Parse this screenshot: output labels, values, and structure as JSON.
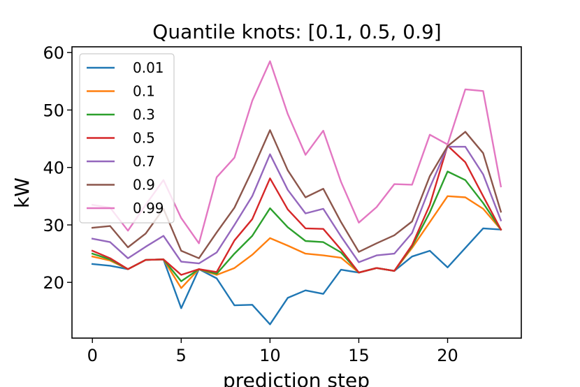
{
  "chart_data": {
    "type": "line",
    "title": "Quantile knots: [0.1, 0.5, 0.9]",
    "xlabel": "prediction step",
    "ylabel": "kW",
    "xlim": [
      -1.15,
      24.15
    ],
    "ylim": [
      10.3,
      61.0
    ],
    "xticks": [
      0,
      5,
      10,
      15,
      20
    ],
    "yticks": [
      20,
      30,
      40,
      50,
      60
    ],
    "grid": false,
    "legend_position": "top-left",
    "x": [
      0,
      1,
      2,
      3,
      4,
      5,
      6,
      7,
      8,
      9,
      10,
      11,
      12,
      13,
      14,
      15,
      16,
      17,
      18,
      19,
      20,
      21,
      22,
      23
    ],
    "series": [
      {
        "name": "0.01",
        "color": "#1f77b4",
        "values": [
          23.2,
          22.9,
          22.3,
          23.9,
          24.0,
          15.5,
          22.3,
          20.7,
          16.0,
          16.1,
          12.7,
          17.3,
          18.6,
          18.0,
          22.2,
          21.7,
          22.5,
          22.0,
          24.5,
          25.5,
          22.6,
          26.0,
          29.4,
          29.2
        ]
      },
      {
        "name": "0.1",
        "color": "#ff7f0e",
        "values": [
          24.5,
          23.8,
          22.3,
          23.9,
          24.0,
          19.0,
          22.3,
          21.3,
          22.5,
          24.8,
          27.7,
          26.4,
          25.0,
          24.7,
          24.3,
          21.7,
          22.5,
          22.0,
          26.0,
          30.5,
          35.0,
          34.8,
          32.8,
          29.2
        ]
      },
      {
        "name": "0.3",
        "color": "#2ca02c",
        "values": [
          25.0,
          24.0,
          22.3,
          23.9,
          24.0,
          20.2,
          22.3,
          21.5,
          25.0,
          28.1,
          32.9,
          29.6,
          27.2,
          27.0,
          25.2,
          21.7,
          22.5,
          22.0,
          26.3,
          32.2,
          39.3,
          37.8,
          33.8,
          29.2
        ]
      },
      {
        "name": "0.5",
        "color": "#d62728",
        "values": [
          25.5,
          24.2,
          22.3,
          23.9,
          24.0,
          21.3,
          22.3,
          21.8,
          27.3,
          31.0,
          38.1,
          32.7,
          29.4,
          29.3,
          25.7,
          21.7,
          22.5,
          22.0,
          26.5,
          33.5,
          43.8,
          40.9,
          35.0,
          29.2
        ]
      },
      {
        "name": "0.7",
        "color": "#9467bd",
        "values": [
          27.6,
          27.0,
          24.2,
          26.2,
          28.1,
          23.6,
          23.3,
          25.2,
          30.0,
          35.0,
          42.3,
          36.1,
          32.0,
          32.8,
          28.0,
          23.5,
          24.7,
          25.0,
          28.6,
          36.5,
          43.6,
          43.6,
          38.8,
          30.8
        ]
      },
      {
        "name": "0.9",
        "color": "#8c564b",
        "values": [
          29.5,
          29.8,
          26.1,
          28.5,
          32.8,
          25.5,
          24.2,
          28.7,
          33.0,
          39.5,
          46.5,
          39.5,
          34.8,
          36.3,
          30.5,
          25.3,
          26.8,
          28.2,
          30.6,
          38.5,
          43.7,
          46.2,
          42.5,
          32.3
        ]
      },
      {
        "name": "0.99",
        "color": "#e377c2",
        "values": [
          33.5,
          33.0,
          29.0,
          33.5,
          37.8,
          31.2,
          26.8,
          38.3,
          41.7,
          51.6,
          58.5,
          49.3,
          42.2,
          46.4,
          37.5,
          30.4,
          33.1,
          37.1,
          37.0,
          45.7,
          44.0,
          53.6,
          53.3,
          36.7
        ]
      }
    ]
  }
}
